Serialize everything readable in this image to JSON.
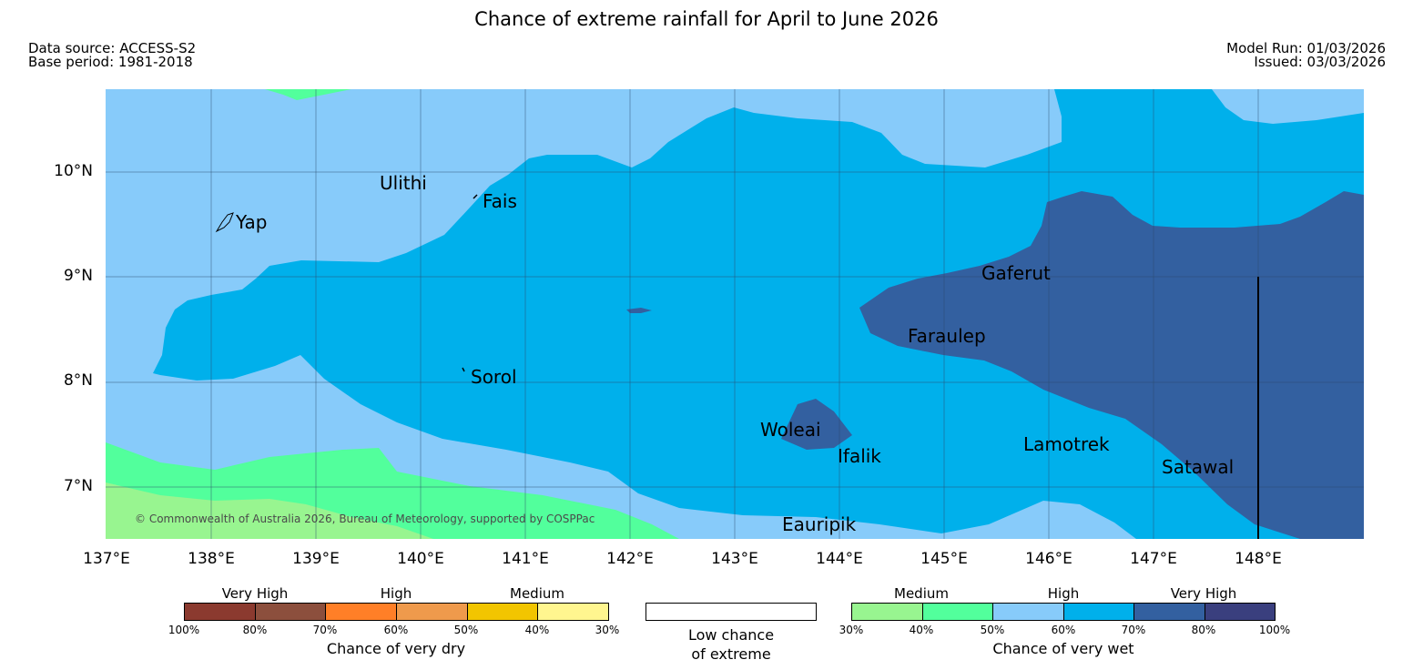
{
  "title": "Chance of extreme rainfall for April to June 2026",
  "meta": {
    "data_source": "Data source: ACCESS-S2",
    "base_period": "Base period: 1981-2018",
    "model_run": "Model Run: 01/03/2026",
    "issued": "Issued: 03/03/2026"
  },
  "axes": {
    "lat_ticks": [
      "10°N",
      "9°N",
      "8°N",
      "7°N"
    ],
    "lon_ticks": [
      "137°E",
      "138°E",
      "139°E",
      "140°E",
      "141°E",
      "142°E",
      "143°E",
      "144°E",
      "145°E",
      "146°E",
      "147°E",
      "148°E"
    ]
  },
  "places": [
    "Ulithi",
    "Fais",
    "Yap",
    "Gaferut",
    "Faraulep",
    "Sorol",
    "Woleai",
    "Ifalik",
    "Lamotrek",
    "Satawal",
    "Eauripik"
  ],
  "credit": "© Commonwealth of Australia 2026, Bureau of Meteorology, supported by COSPPac",
  "legend": {
    "dry": {
      "headers": [
        "Very High",
        "High",
        "Medium"
      ],
      "ticks": [
        "100%",
        "80%",
        "70%",
        "60%",
        "50%",
        "40%",
        "30%"
      ],
      "colors": [
        "#8b3a2f",
        "#8c4f3d",
        "#ff7f27",
        "#ef9a4c",
        "#f2c500",
        "#fff68f"
      ],
      "caption": "Chance of very dry"
    },
    "neutral": {
      "caption_line1": "Low chance",
      "caption_line2": "of extreme"
    },
    "wet": {
      "headers": [
        "Medium",
        "High",
        "Very High"
      ],
      "ticks": [
        "30%",
        "40%",
        "50%",
        "60%",
        "70%",
        "80%",
        "100%"
      ],
      "colors": [
        "#98f590",
        "#52ff9c",
        "#87cbfa",
        "#00b0eb",
        "#3360a0",
        "#3a3f7e"
      ],
      "caption": "Chance of very wet"
    }
  },
  "map_colors": {
    "medium_40": "#98f590",
    "medium_50": "#52ff9c",
    "high_60": "#87cbfa",
    "high_70": "#00b0eb",
    "very_high_80": "#3360a0"
  }
}
